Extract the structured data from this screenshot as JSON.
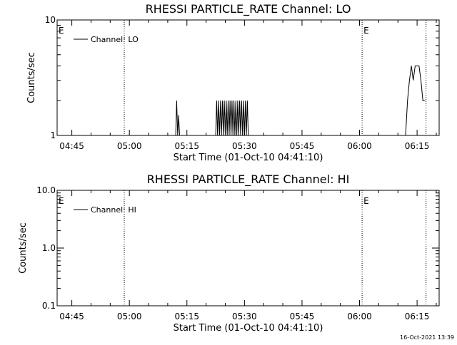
{
  "chart_data": [
    {
      "type": "line",
      "title": "RHESSI PARTICLE_RATE Channel: LO",
      "xlabel": "Start Time (01-Oct-10 04:41:10)",
      "ylabel": "Counts/sec",
      "y_scale": "log",
      "ylim": [
        1,
        10
      ],
      "y_ticks": [
        "1",
        "10"
      ],
      "xlim": [
        "04:41:10",
        "06:20:45"
      ],
      "x_ticks": [
        "04:45",
        "05:00",
        "05:15",
        "05:30",
        "05:45",
        "06:00",
        "06:15"
      ],
      "legend": {
        "entries": [
          "Channel: LO"
        ],
        "placement": "top-left"
      },
      "markers": [
        {
          "label": "E",
          "x": "04:41:10",
          "style": "label"
        },
        {
          "label": "",
          "x": "04:58:40",
          "style": "dotted"
        },
        {
          "label": "E",
          "x": "06:00:40",
          "style": "dotted"
        },
        {
          "label": "",
          "x": "06:17:20",
          "style": "dotted"
        }
      ],
      "series": [
        {
          "name": "Channel: LO",
          "x": [
            "05:12:05",
            "05:12:20",
            "05:12:35",
            "05:12:50",
            "05:13:05",
            "05:13:20",
            "05:22:30",
            "05:22:45",
            "05:23:00",
            "05:23:15",
            "05:23:30",
            "05:23:45",
            "05:24:00",
            "05:24:15",
            "05:24:30",
            "05:24:45",
            "05:25:00",
            "05:25:15",
            "05:25:30",
            "05:25:45",
            "05:26:00",
            "05:26:15",
            "05:26:30",
            "05:26:45",
            "05:27:00",
            "05:27:15",
            "05:27:30",
            "05:27:45",
            "05:28:00",
            "05:28:15",
            "05:28:30",
            "05:28:45",
            "05:29:00",
            "05:29:15",
            "05:29:30",
            "05:29:45",
            "05:30:00",
            "05:30:15",
            "05:30:30",
            "05:30:45",
            "05:31:00",
            "05:31:15",
            "06:12:00",
            "06:12:30",
            "06:13:00",
            "06:13:30",
            "06:14:00",
            "06:14:30",
            "06:15:00",
            "06:15:30",
            "06:16:00",
            "06:16:30",
            "06:17:00"
          ],
          "y": [
            1,
            2,
            1,
            1.5,
            1,
            1,
            1,
            2,
            1,
            2,
            1,
            2,
            1,
            2,
            1,
            2,
            1,
            2,
            1,
            2,
            1,
            2,
            1,
            2,
            1,
            2,
            1,
            2,
            1,
            2,
            1,
            2,
            1,
            2,
            1,
            2,
            1,
            2,
            1,
            2,
            1,
            1,
            1,
            2,
            3,
            4,
            3,
            4,
            4,
            4,
            3,
            2,
            2
          ]
        }
      ]
    },
    {
      "type": "line",
      "title": "RHESSI PARTICLE_RATE Channel: HI",
      "xlabel": "Start Time (01-Oct-10 04:41:10)",
      "ylabel": "Counts/sec",
      "y_scale": "log",
      "ylim": [
        0.1,
        10
      ],
      "y_ticks": [
        "0.1",
        "1.0",
        "10.0"
      ],
      "xlim": [
        "04:41:10",
        "06:20:45"
      ],
      "x_ticks": [
        "04:45",
        "05:00",
        "05:15",
        "05:30",
        "05:45",
        "06:00",
        "06:15"
      ],
      "legend": {
        "entries": [
          "Channel: HI"
        ],
        "placement": "top-left"
      },
      "markers": [
        {
          "label": "E",
          "x": "04:41:10",
          "style": "label"
        },
        {
          "label": "",
          "x": "04:58:40",
          "style": "dotted"
        },
        {
          "label": "E",
          "x": "06:00:40",
          "style": "dotted"
        },
        {
          "label": "",
          "x": "06:17:20",
          "style": "dotted"
        }
      ],
      "series": [
        {
          "name": "Channel: HI",
          "x": [],
          "y": []
        }
      ]
    }
  ],
  "footer": {
    "timestamp": "16-Oct-2021 13:39"
  }
}
